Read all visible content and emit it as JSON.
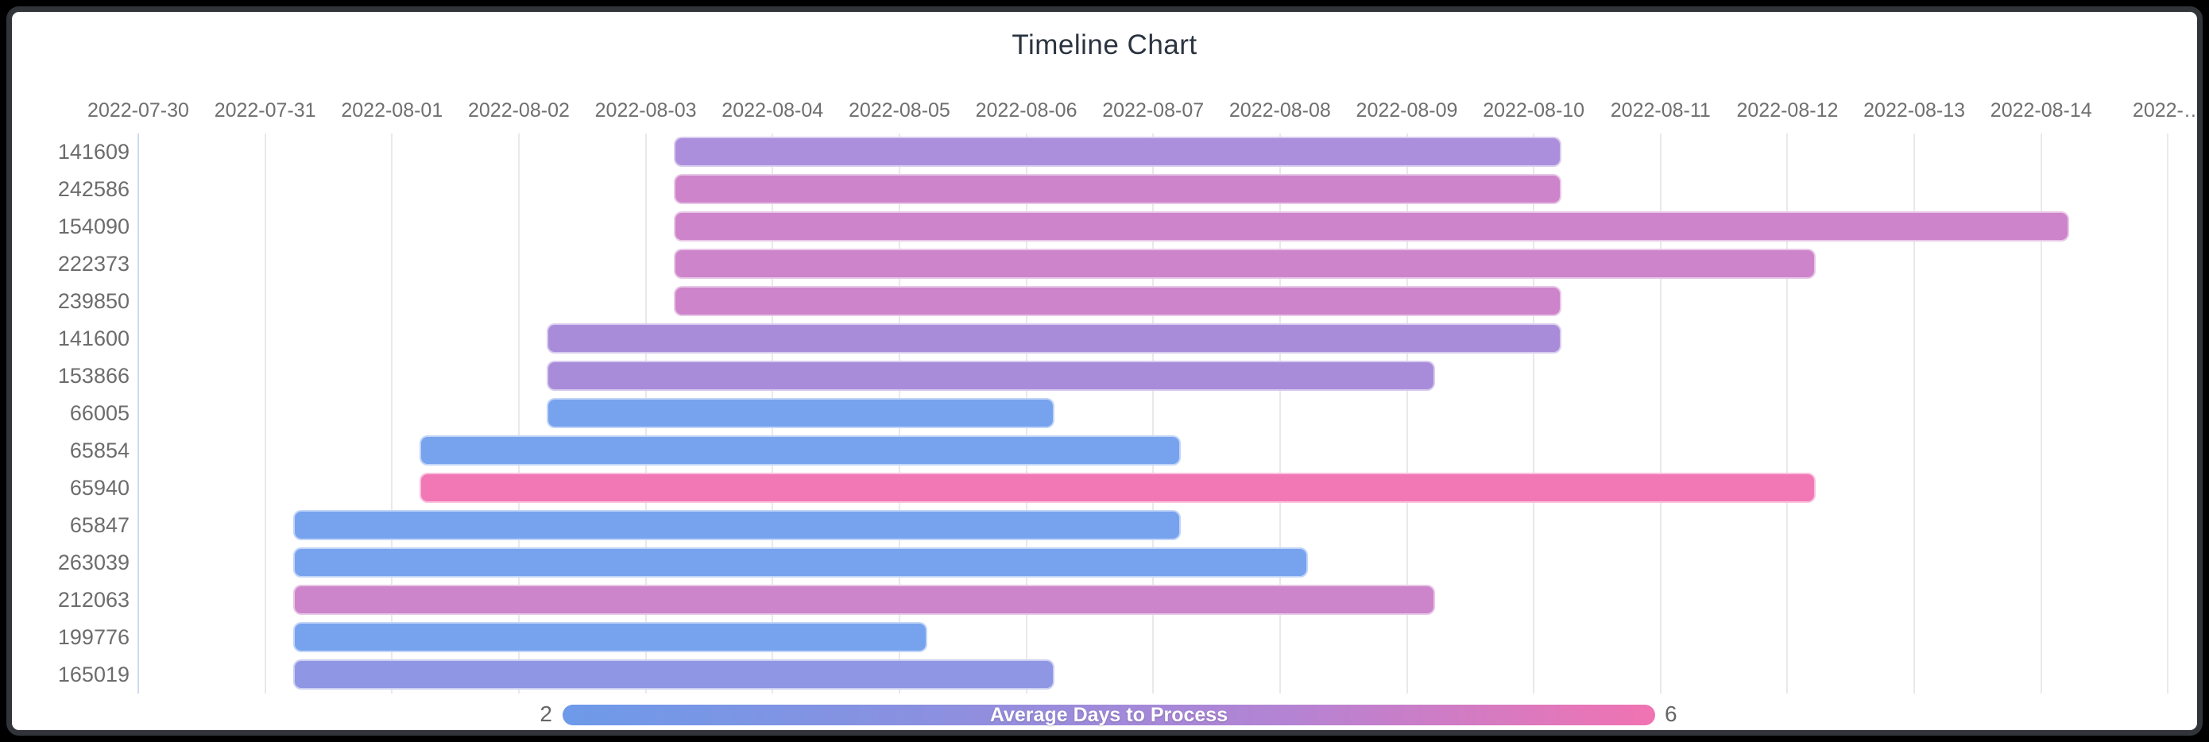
{
  "window": {
    "title": "Timeline Chart"
  },
  "chart_data": {
    "type": "timeline",
    "title": "Timeline Chart",
    "x_axis": {
      "start_date": "2022-07-30",
      "tick_labels": [
        "2022-07-30",
        "2022-07-31",
        "2022-08-01",
        "2022-08-02",
        "2022-08-03",
        "2022-08-04",
        "2022-08-05",
        "2022-08-06",
        "2022-08-07",
        "2022-08-08",
        "2022-08-09",
        "2022-08-10",
        "2022-08-11",
        "2022-08-12",
        "2022-08-13",
        "2022-08-14",
        "2022-…"
      ]
    },
    "bar_time_offset_days": 0.22,
    "rows": [
      {
        "id": "141609",
        "start": "2022-08-03",
        "end": "2022-08-10",
        "duration_days": 7,
        "color": "#ab8fdc",
        "avg_days_to_process_est": 3.5
      },
      {
        "id": "242586",
        "start": "2022-08-03",
        "end": "2022-08-10",
        "duration_days": 7,
        "color": "#cd84ca",
        "avg_days_to_process_est": 4.5
      },
      {
        "id": "154090",
        "start": "2022-08-03",
        "end": "2022-08-14",
        "duration_days": 11,
        "color": "#cd84ca",
        "avg_days_to_process_est": 4.5
      },
      {
        "id": "222373",
        "start": "2022-08-03",
        "end": "2022-08-12",
        "duration_days": 9,
        "color": "#cd84ca",
        "avg_days_to_process_est": 4.5
      },
      {
        "id": "239850",
        "start": "2022-08-03",
        "end": "2022-08-10",
        "duration_days": 7,
        "color": "#cd84ca",
        "avg_days_to_process_est": 4.5
      },
      {
        "id": "141600",
        "start": "2022-08-02",
        "end": "2022-08-10",
        "duration_days": 8,
        "color": "#a88cda",
        "avg_days_to_process_est": 3.5
      },
      {
        "id": "153866",
        "start": "2022-08-02",
        "end": "2022-08-09",
        "duration_days": 7,
        "color": "#a88cda",
        "avg_days_to_process_est": 3.5
      },
      {
        "id": "66005",
        "start": "2022-08-02",
        "end": "2022-08-06",
        "duration_days": 4,
        "color": "#77a3ee",
        "avg_days_to_process_est": 2
      },
      {
        "id": "65854",
        "start": "2022-08-01",
        "end": "2022-08-07",
        "duration_days": 6,
        "color": "#77a3ee",
        "avg_days_to_process_est": 2
      },
      {
        "id": "65940",
        "start": "2022-08-01",
        "end": "2022-08-12",
        "duration_days": 11,
        "color": "#f177b5",
        "avg_days_to_process_est": 6
      },
      {
        "id": "65847",
        "start": "2022-07-31",
        "end": "2022-08-07",
        "duration_days": 7,
        "color": "#77a3ee",
        "avg_days_to_process_est": 2
      },
      {
        "id": "263039",
        "start": "2022-07-31",
        "end": "2022-08-08",
        "duration_days": 8,
        "color": "#77a3ee",
        "avg_days_to_process_est": 2
      },
      {
        "id": "212063",
        "start": "2022-07-31",
        "end": "2022-08-09",
        "duration_days": 9,
        "color": "#cc84ca",
        "avg_days_to_process_est": 4.5
      },
      {
        "id": "199776",
        "start": "2022-07-31",
        "end": "2022-08-05",
        "duration_days": 5,
        "color": "#77a3ee",
        "avg_days_to_process_est": 2
      },
      {
        "id": "165019",
        "start": "2022-07-31",
        "end": "2022-08-06",
        "duration_days": 6,
        "color": "#8f96e3",
        "avg_days_to_process_est": 3
      }
    ],
    "legend": {
      "label": "Average Days to Process",
      "min": "2",
      "max": "6",
      "gradient": [
        "#6d9ae9",
        "#8b90e0",
        "#b583d3",
        "#f173b2"
      ]
    },
    "layout_hints": {
      "grid": true,
      "legend_position": "bottom",
      "bar_corner_radius": 10
    }
  },
  "colors": {
    "page_frame": "#000000",
    "frame_border": "#31353a",
    "card_background": "#ffffff",
    "gridline": "#e9e9ec",
    "axis_line": "#cfdcee",
    "tick_text": "#6f6f6f",
    "title_text": "#2b3440",
    "legend_text": "#ffffff",
    "legend_minmax_text": "#666666"
  }
}
